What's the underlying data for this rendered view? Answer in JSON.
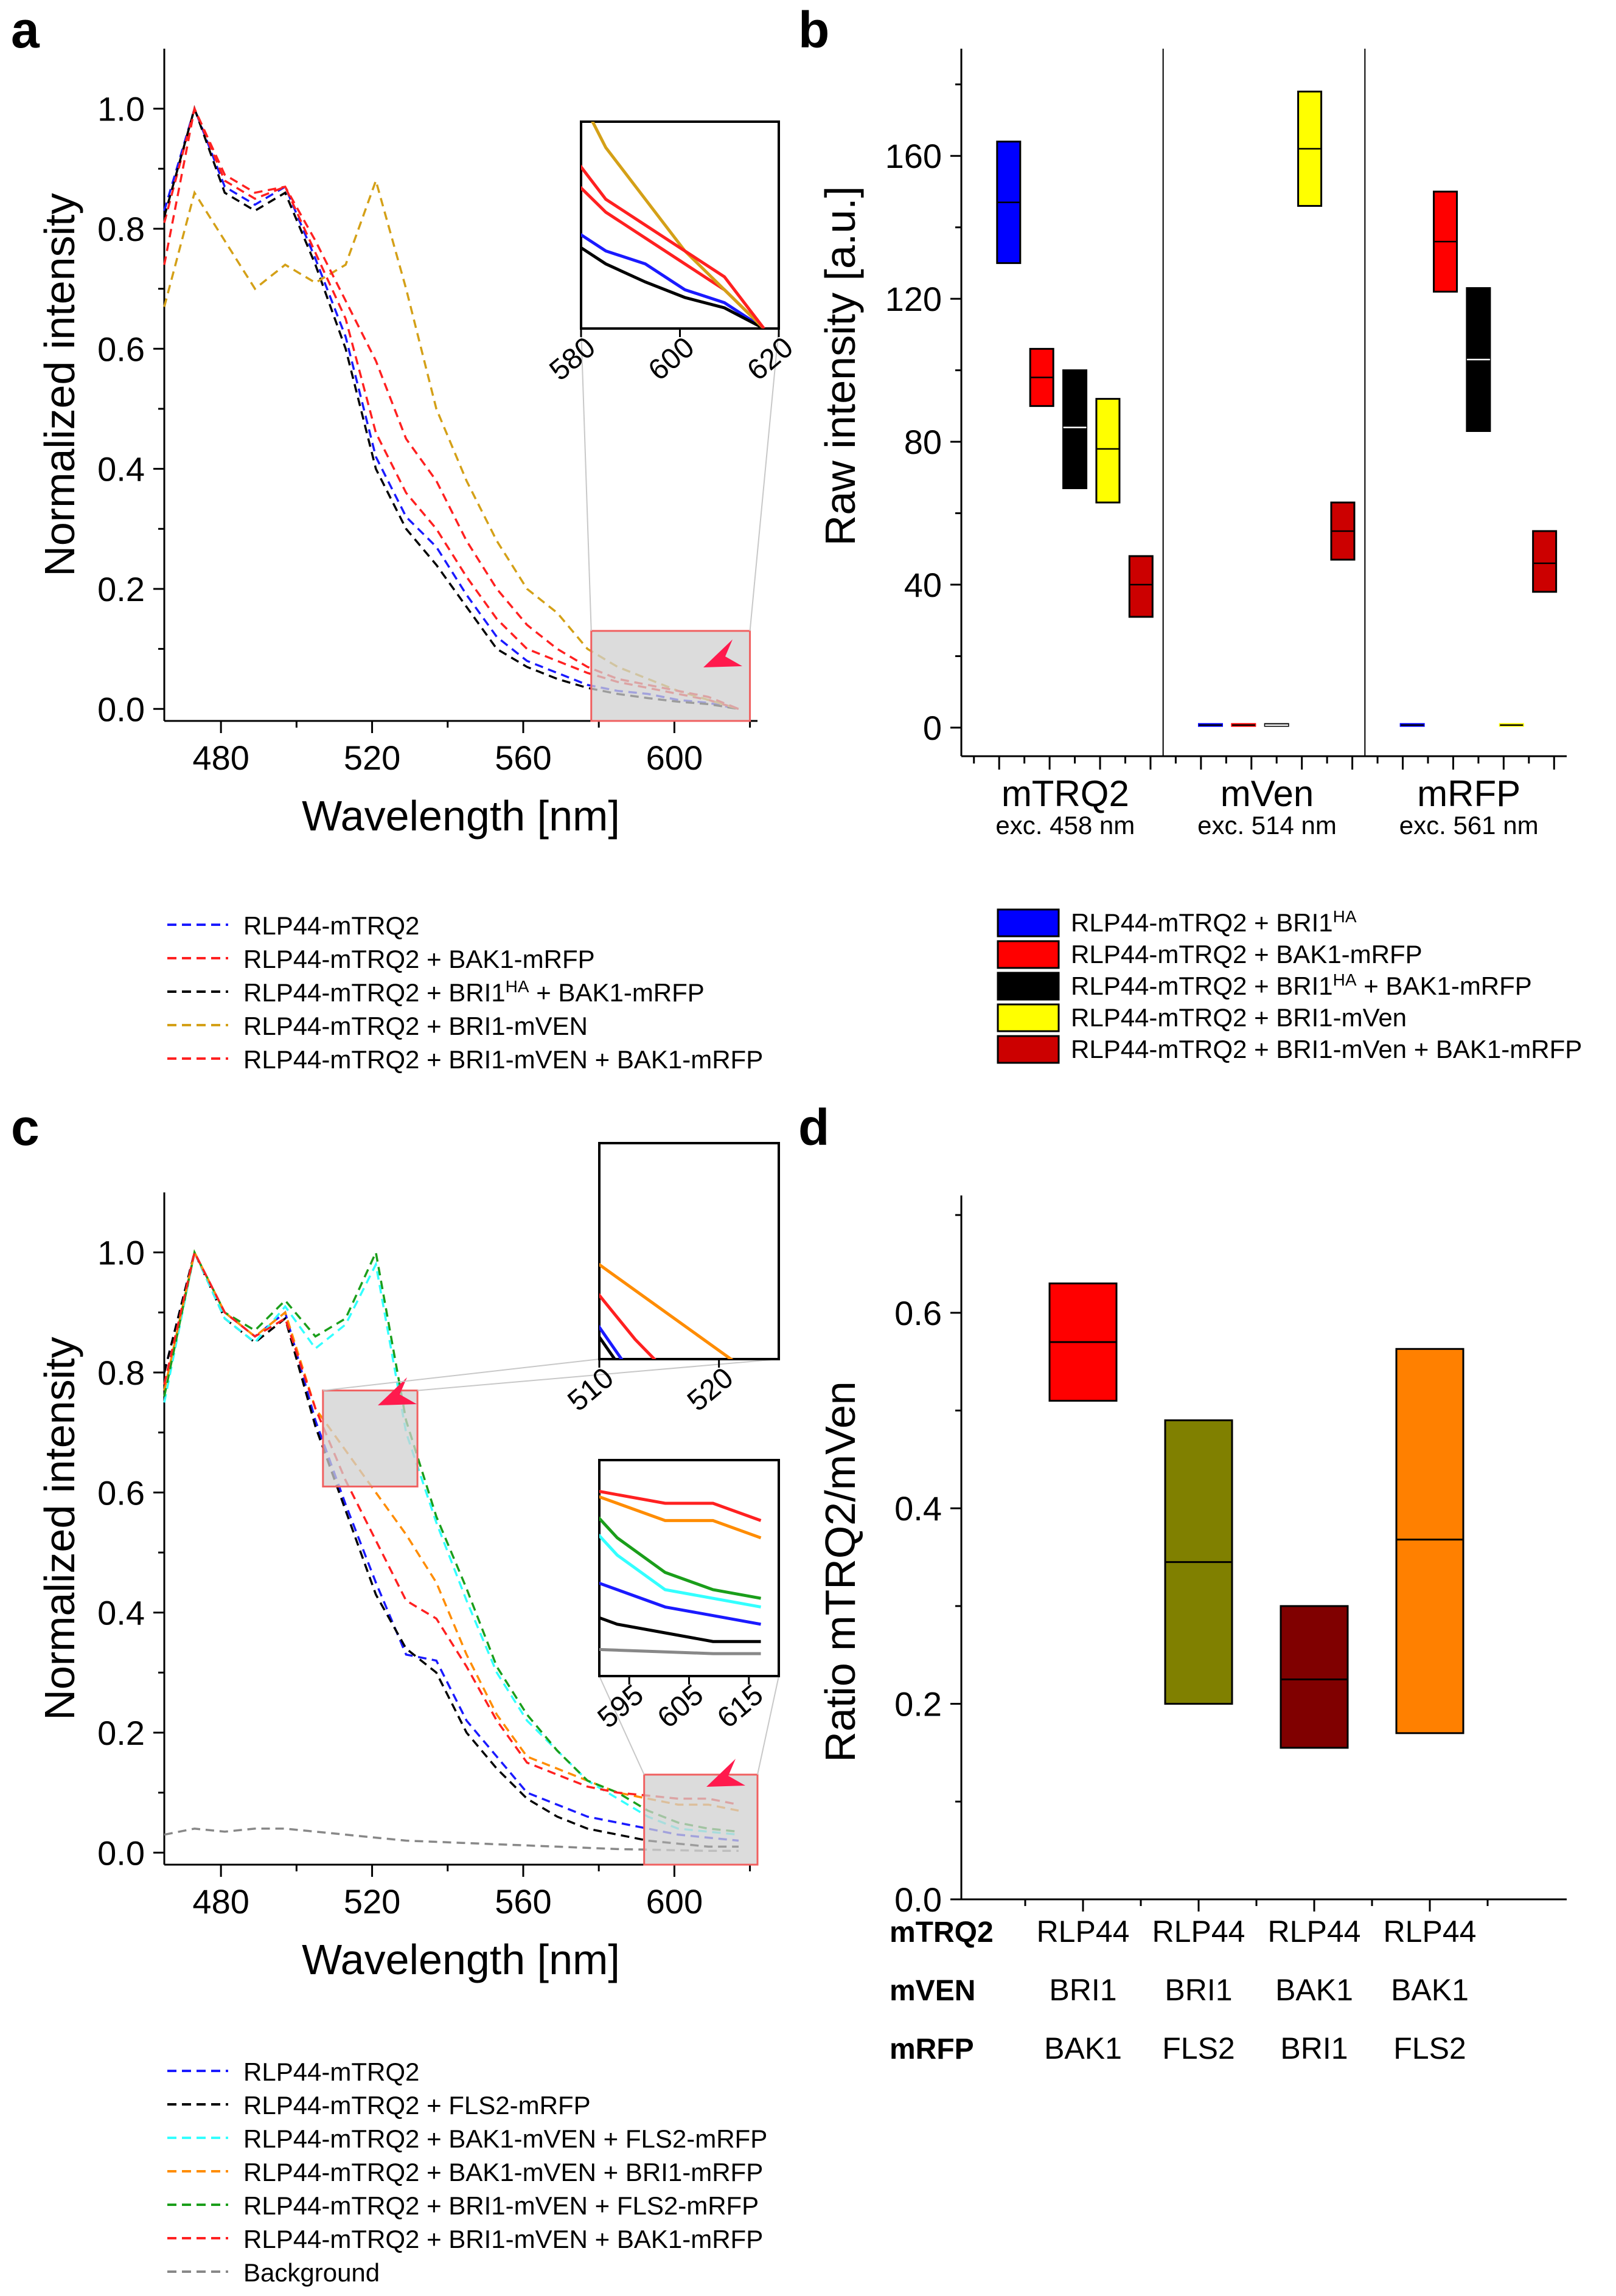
{
  "chart_data": [
    {
      "panel": "a",
      "type": "line",
      "xlabel": "Wavelength [nm]",
      "ylabel": "Normalized intensity",
      "xlim": [
        465,
        622
      ],
      "ylim": [
        -0.02,
        1.1
      ],
      "x_ticks": [
        480,
        520,
        560,
        600
      ],
      "x_tick_labels": [
        "480",
        "520",
        "560",
        "600"
      ],
      "y_ticks": [
        0.0,
        0.2,
        0.4,
        0.6,
        0.8,
        1.0
      ],
      "y_tick_labels": [
        "0.0",
        "0.2",
        "0.4",
        "0.6",
        "0.8",
        "1.0"
      ],
      "x": [
        465,
        473,
        481,
        489,
        497,
        505,
        513,
        521,
        529,
        537,
        545,
        553,
        561,
        569,
        577,
        585,
        593,
        601,
        609,
        617
      ],
      "series": [
        {
          "name": "RLP44-mTRQ2",
          "color": "#1a1aff",
          "values": [
            0.83,
            1.0,
            0.87,
            0.84,
            0.87,
            0.75,
            0.62,
            0.42,
            0.32,
            0.27,
            0.19,
            0.12,
            0.08,
            0.06,
            0.04,
            0.03,
            0.025,
            0.015,
            0.01,
            0.0
          ]
        },
        {
          "name": "RLP44-mTRQ2 + BAK1-mRFP",
          "color": "#ff2020",
          "values": [
            0.81,
            1.0,
            0.88,
            0.85,
            0.87,
            0.76,
            0.65,
            0.46,
            0.36,
            0.3,
            0.22,
            0.15,
            0.1,
            0.08,
            0.06,
            0.045,
            0.035,
            0.025,
            0.015,
            0.0
          ]
        },
        {
          "name": "RLP44-mTRQ2 + BRI1HA + BAK1-mRFP",
          "color": "#000000",
          "values": [
            0.82,
            1.0,
            0.86,
            0.83,
            0.86,
            0.74,
            0.6,
            0.4,
            0.3,
            0.24,
            0.17,
            0.1,
            0.07,
            0.05,
            0.035,
            0.025,
            0.018,
            0.012,
            0.008,
            0.0
          ]
        },
        {
          "name": "RLP44-mTRQ2 + BRI1-mVEN",
          "color": "#d4a017",
          "values": [
            0.67,
            0.86,
            0.78,
            0.7,
            0.74,
            0.71,
            0.74,
            0.88,
            0.7,
            0.5,
            0.38,
            0.28,
            0.2,
            0.16,
            0.1,
            0.07,
            0.05,
            0.03,
            0.015,
            0.0
          ]
        },
        {
          "name": "RLP44-mTRQ2 + BRI1-mVEN + BAK1-mRFP",
          "color": "#ff2020",
          "values": [
            0.74,
            1.0,
            0.89,
            0.86,
            0.87,
            0.78,
            0.68,
            0.58,
            0.45,
            0.38,
            0.28,
            0.2,
            0.14,
            0.1,
            0.07,
            0.05,
            0.04,
            0.03,
            0.02,
            0.0
          ]
        }
      ],
      "inset": {
        "x_tick_labels": [
          "580",
          "600",
          "620"
        ]
      }
    },
    {
      "panel": "b",
      "type": "box",
      "ylabel": "Raw intensity [a.u.]",
      "ylim": [
        -8,
        190
      ],
      "y_ticks": [
        0,
        40,
        80,
        120,
        160
      ],
      "y_tick_labels": [
        "0",
        "40",
        "80",
        "120",
        "160"
      ],
      "groups": [
        {
          "name": "mTRQ2",
          "subtitle": "exc. 458 nm"
        },
        {
          "name": "mVen",
          "subtitle": "exc. 514 nm"
        },
        {
          "name": "mRFP",
          "subtitle": "exc. 561 nm"
        }
      ],
      "series": [
        {
          "name": "RLP44-mTRQ2 + BRI1",
          "superscript": "HA",
          "color": "#0000ff",
          "boxes": [
            [
              130,
              147,
              164
            ],
            [
              0.5,
              0.7,
              1
            ],
            [
              0.5,
              0.7,
              1
            ]
          ]
        },
        {
          "name": "RLP44-mTRQ2 + BAK1-mRFP",
          "superscript": "",
          "color": "#ff0000",
          "boxes": [
            [
              90,
              98,
              106
            ],
            [
              0.5,
              0.7,
              1
            ],
            [
              122,
              136,
              150
            ]
          ]
        },
        {
          "name": "RLP44-mTRQ2 + BRI1",
          "superscript": "HA",
          "suffix": " + BAK1-mRFP",
          "color": "#000000",
          "boxes": [
            [
              67,
              84,
              100
            ],
            [
              0.5,
              0.7,
              1
            ],
            [
              83,
              103,
              123
            ]
          ]
        },
        {
          "name": "RLP44-mTRQ2 + BRI1-mVen",
          "superscript": "",
          "color": "#ffff00",
          "boxes": [
            [
              63,
              78,
              92
            ],
            [
              146,
              162,
              178
            ],
            [
              0.5,
              0.7,
              1
            ]
          ]
        },
        {
          "name": "RLP44-mTRQ2 + BRI1-mVen + BAK1-mRFP",
          "superscript": "",
          "color": "#cc0000",
          "boxes": [
            [
              31,
              40,
              48
            ],
            [
              47,
              55,
              63
            ],
            [
              38,
              46,
              55
            ]
          ]
        }
      ]
    },
    {
      "panel": "c",
      "type": "line",
      "xlabel": "Wavelength [nm]",
      "ylabel": "Normalized intensity",
      "xlim": [
        465,
        622
      ],
      "ylim": [
        -0.02,
        1.1
      ],
      "x_ticks": [
        480,
        520,
        560,
        600
      ],
      "x_tick_labels": [
        "480",
        "520",
        "560",
        "600"
      ],
      "y_ticks": [
        0.0,
        0.2,
        0.4,
        0.6,
        0.8,
        1.0
      ],
      "y_tick_labels": [
        "0.0",
        "0.2",
        "0.4",
        "0.6",
        "0.8",
        "1.0"
      ],
      "x": [
        465,
        473,
        481,
        489,
        497,
        505,
        513,
        521,
        529,
        537,
        545,
        553,
        561,
        569,
        577,
        585,
        593,
        601,
        609,
        617
      ],
      "series": [
        {
          "name": "RLP44-mTRQ2",
          "color": "#1a1aff",
          "values": [
            0.8,
            1.0,
            0.9,
            0.86,
            0.9,
            0.72,
            0.58,
            0.45,
            0.33,
            0.32,
            0.22,
            0.16,
            0.1,
            0.08,
            0.06,
            0.05,
            0.04,
            0.03,
            0.025,
            0.02
          ]
        },
        {
          "name": "RLP44-mTRQ2 + FLS2-mRFP",
          "color": "#000000",
          "values": [
            0.8,
            1.0,
            0.89,
            0.85,
            0.89,
            0.71,
            0.57,
            0.43,
            0.34,
            0.3,
            0.2,
            0.14,
            0.09,
            0.06,
            0.04,
            0.03,
            0.02,
            0.015,
            0.01,
            0.01
          ]
        },
        {
          "name": "RLP44-mTRQ2 + BAK1-mVEN + FLS2-mRFP",
          "color": "#33ffff",
          "values": [
            0.75,
            1.0,
            0.89,
            0.85,
            0.91,
            0.84,
            0.88,
            0.98,
            0.7,
            0.55,
            0.42,
            0.3,
            0.22,
            0.17,
            0.12,
            0.09,
            0.06,
            0.04,
            0.035,
            0.03
          ]
        },
        {
          "name": "RLP44-mTRQ2 + BAK1-mVEN + BRI1-mRFP",
          "color": "#ff8c00",
          "values": [
            0.77,
            1.0,
            0.9,
            0.86,
            0.9,
            0.74,
            0.67,
            0.6,
            0.53,
            0.45,
            0.33,
            0.23,
            0.16,
            0.14,
            0.12,
            0.1,
            0.09,
            0.08,
            0.08,
            0.07
          ]
        },
        {
          "name": "RLP44-mTRQ2 + BRI1-mVEN + FLS2-mRFP",
          "color": "#1a9e1a",
          "values": [
            0.76,
            1.0,
            0.9,
            0.87,
            0.92,
            0.86,
            0.89,
            1.0,
            0.72,
            0.56,
            0.44,
            0.31,
            0.23,
            0.17,
            0.12,
            0.1,
            0.07,
            0.05,
            0.04,
            0.035
          ]
        },
        {
          "name": "RLP44-mTRQ2 + BRI1-mVEN + BAK1-mRFP",
          "color": "#ff2020",
          "values": [
            0.78,
            1.0,
            0.9,
            0.86,
            0.89,
            0.74,
            0.62,
            0.52,
            0.42,
            0.39,
            0.31,
            0.22,
            0.15,
            0.13,
            0.11,
            0.1,
            0.095,
            0.09,
            0.09,
            0.08
          ]
        },
        {
          "name": "Background",
          "color": "#888888",
          "values": [
            0.03,
            0.04,
            0.035,
            0.04,
            0.04,
            0.035,
            0.03,
            0.025,
            0.02,
            0.018,
            0.016,
            0.014,
            0.012,
            0.01,
            0.008,
            0.006,
            0.005,
            0.004,
            0.003,
            0.003
          ]
        }
      ],
      "inset_top": {
        "x_tick_labels": [
          "510",
          "520"
        ]
      },
      "inset_bottom": {
        "x_tick_labels": [
          "595",
          "605",
          "615"
        ]
      }
    },
    {
      "panel": "d",
      "type": "box",
      "ylabel": "Ratio mTRQ2/mVen",
      "ylim": [
        0,
        0.72
      ],
      "y_ticks": [
        0.0,
        0.2,
        0.4,
        0.6
      ],
      "y_tick_labels": [
        "0.0",
        "0.2",
        "0.4",
        "0.6"
      ],
      "row_labels": [
        "mTRQ2",
        "mVEN",
        "mRFP"
      ],
      "categories": [
        {
          "mTRQ2": "RLP44",
          "mVEN": "BRI1",
          "mRFP": "BAK1"
        },
        {
          "mTRQ2": "RLP44",
          "mVEN": "BRI1",
          "mRFP": "FLS2"
        },
        {
          "mTRQ2": "RLP44",
          "mVEN": "BAK1",
          "mRFP": "BRI1"
        },
        {
          "mTRQ2": "RLP44",
          "mVEN": "BAK1",
          "mRFP": "FLS2"
        }
      ],
      "boxes": [
        {
          "low": 0.51,
          "mid": 0.57,
          "high": 0.63,
          "color": "#ff0000"
        },
        {
          "low": 0.2,
          "mid": 0.345,
          "high": 0.49,
          "color": "#808000"
        },
        {
          "low": 0.155,
          "mid": 0.225,
          "high": 0.3,
          "color": "#800000"
        },
        {
          "low": 0.17,
          "mid": 0.368,
          "high": 0.563,
          "color": "#ff8000"
        }
      ]
    }
  ],
  "panel_labels": [
    "a",
    "b",
    "c",
    "d"
  ]
}
